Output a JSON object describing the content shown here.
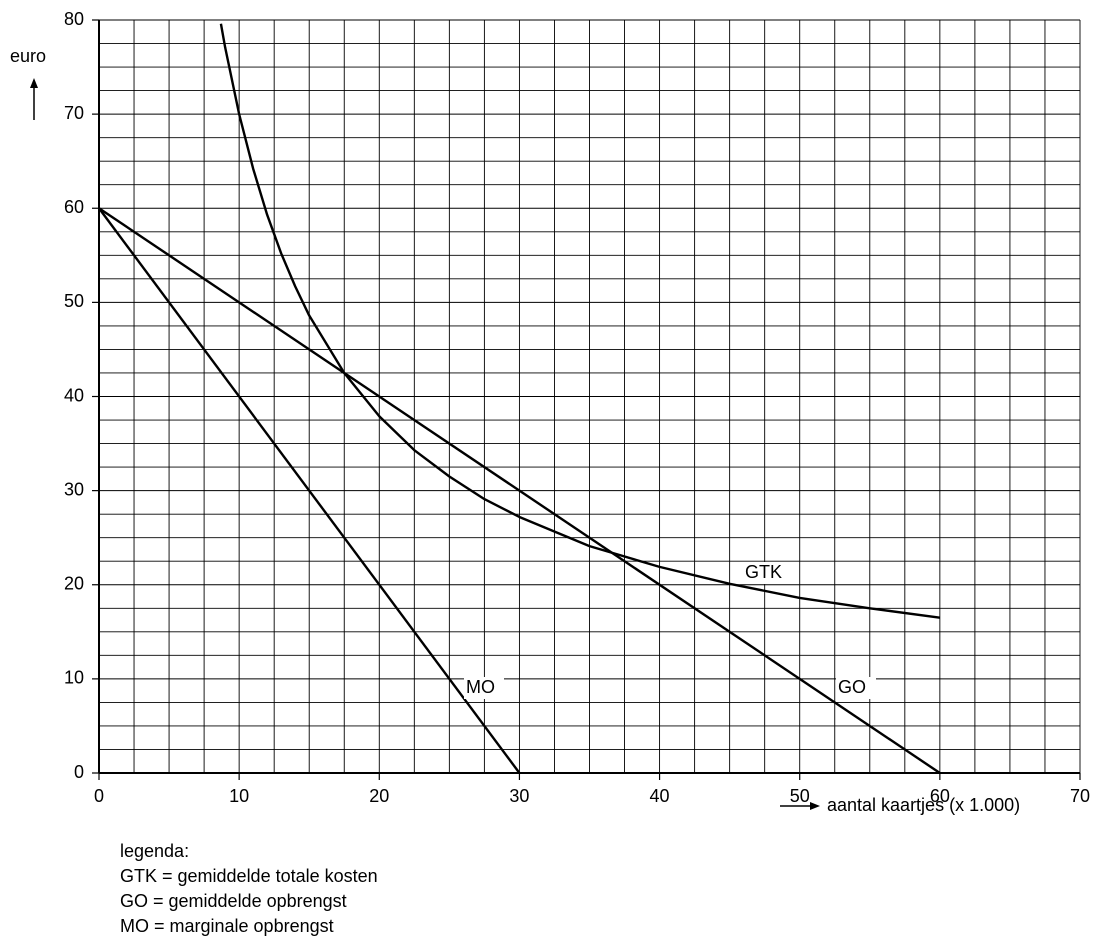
{
  "chart_data": {
    "type": "line",
    "y_label": "euro",
    "x_label": "aantal kaartjes (x 1.000)",
    "xlim": [
      0,
      70
    ],
    "ylim": [
      0,
      80
    ],
    "xticks": [
      0,
      10,
      20,
      30,
      40,
      50,
      60,
      70
    ],
    "yticks": [
      0,
      10,
      20,
      30,
      40,
      50,
      60,
      70,
      80
    ],
    "grid": true,
    "minor_grid_step": 2.5,
    "series": [
      {
        "name": "GTK",
        "color": "#000000",
        "x": [
          8.7,
          9,
          10,
          11,
          12,
          13,
          14,
          15,
          17.5,
          20,
          22.5,
          25,
          27.5,
          30,
          35,
          40,
          45,
          50,
          55,
          60
        ],
        "values": [
          79.6,
          77.1,
          70,
          64.2,
          59.3,
          55.2,
          51.7,
          48.6,
          42.5,
          37.9,
          34.3,
          31.5,
          29.1,
          27.2,
          24.1,
          21.9,
          20.1,
          18.6,
          17.5,
          16.5
        ]
      },
      {
        "name": "GO",
        "color": "#000000",
        "x": [
          0,
          60
        ],
        "values": [
          60,
          0
        ]
      },
      {
        "name": "MO",
        "color": "#000000",
        "x": [
          0,
          30
        ],
        "values": [
          60,
          0
        ]
      }
    ],
    "legend_title": "legenda:",
    "legend_items": [
      "GTK = gemiddelde totale kosten",
      "GO = gemiddelde opbrengst",
      "MO = marginale opbrengst"
    ]
  }
}
